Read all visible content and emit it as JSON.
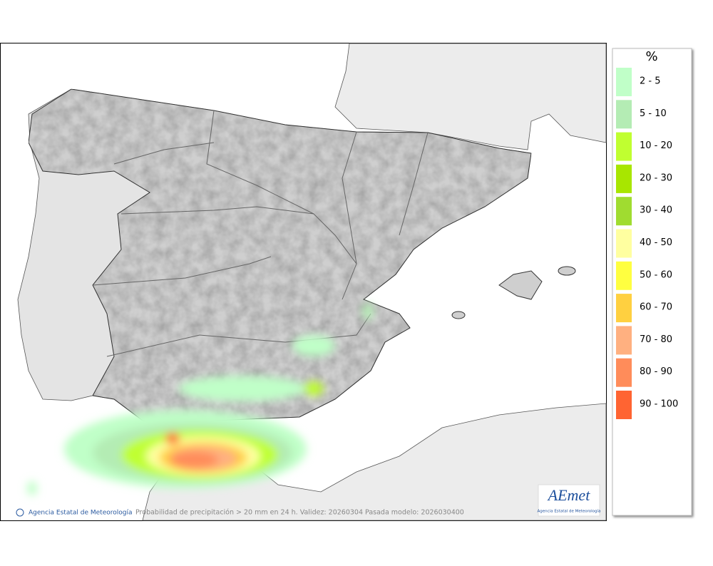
{
  "legend": {
    "title": "%",
    "items": [
      {
        "label": "2 - 5",
        "color": "#c0ffc8"
      },
      {
        "label": "5 - 10",
        "color": "#b4ecb4"
      },
      {
        "label": "10 - 20",
        "color": "#c0ff30"
      },
      {
        "label": "20 - 30",
        "color": "#a8e600"
      },
      {
        "label": "30 - 40",
        "color": "#a0dc30"
      },
      {
        "label": "40 - 50",
        "color": "#ffffa0"
      },
      {
        "label": "50 - 60",
        "color": "#ffff40"
      },
      {
        "label": "60 - 70",
        "color": "#ffd040"
      },
      {
        "label": "70 - 80",
        "color": "#ffb080"
      },
      {
        "label": "80 - 90",
        "color": "#ff8c5a"
      },
      {
        "label": "90 - 100",
        "color": "#ff6432"
      }
    ]
  },
  "footer": {
    "credit": "Agencia Estatal de Meteorología",
    "caption": "Probabilidad de precipitación > 20 mm en 24 h. Validez: 20260304 Pasada modelo: 2026030400"
  },
  "logo": {
    "name": "AEmet",
    "subtitle": "Agencia Estatal de Meteorología"
  }
}
